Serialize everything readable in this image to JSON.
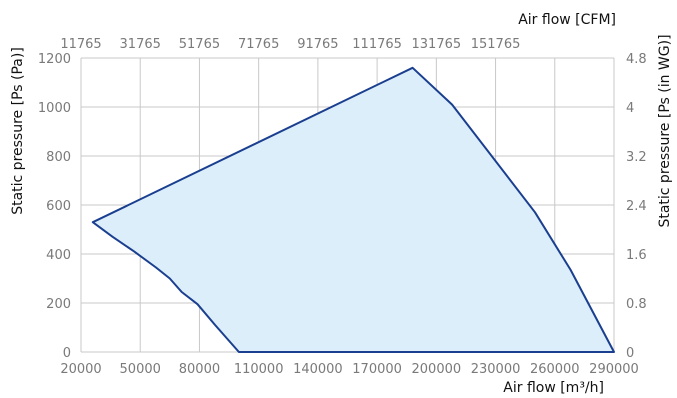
{
  "chart_data": {
    "type": "area",
    "series": [
      {
        "points": [
          {
            "x": 26000,
            "y": 530
          },
          {
            "x": 36000,
            "y": 470
          },
          {
            "x": 47000,
            "y": 410
          },
          {
            "x": 58000,
            "y": 345
          },
          {
            "x": 65000,
            "y": 300
          },
          {
            "x": 71000,
            "y": 245
          },
          {
            "x": 79000,
            "y": 195
          },
          {
            "x": 88000,
            "y": 110
          },
          {
            "x": 100000,
            "y": 0
          },
          {
            "x": 290000,
            "y": 0
          },
          {
            "x": 268000,
            "y": 335
          },
          {
            "x": 250000,
            "y": 570
          },
          {
            "x": 208000,
            "y": 1010
          },
          {
            "x": 188000,
            "y": 1160
          },
          {
            "x": 26000,
            "y": 530
          }
        ]
      }
    ],
    "xlabel": "Air flow [m³/h]",
    "ylabel": "Static pressure [Ps (Pa)]",
    "x2label": "Air flow [CFM]",
    "y2label": "Static pressure [Ps (in WG)]",
    "xlim": [
      20000,
      290000
    ],
    "ylim": [
      0,
      1200
    ],
    "x_ticks": [
      20000,
      50000,
      80000,
      110000,
      140000,
      170000,
      200000,
      230000,
      260000,
      290000
    ],
    "y_ticks": [
      0,
      200,
      400,
      600,
      800,
      1000,
      1200
    ],
    "x2_tick_labels": [
      "11765",
      "31765",
      "51765",
      "71765",
      "91765",
      "111765",
      "131765",
      "151765"
    ],
    "y2_tick_labels": [
      "0",
      "0.8",
      "1.6",
      "2.4",
      "3.2",
      "4",
      "4.8"
    ],
    "grid": true,
    "colors": {
      "line": "#1a3f8f",
      "fill": "#ddeefb",
      "grid": "#c8c8c8"
    }
  }
}
